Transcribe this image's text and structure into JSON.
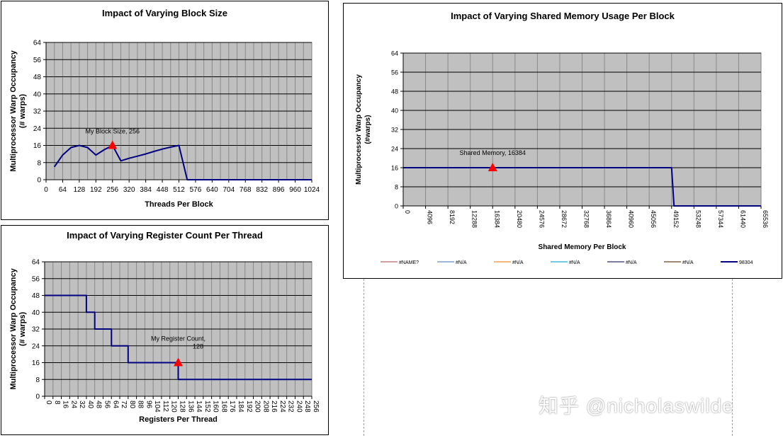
{
  "chart_data": [
    {
      "type": "line",
      "title": "Impact of Varying Block Size",
      "xlabel": "Threads Per Block",
      "ylabel_lines": [
        "Multiprocessor Warp Occupancy",
        "(# warps)"
      ],
      "xlim": [
        0,
        1024
      ],
      "ylim": [
        0,
        64
      ],
      "x_ticks": [
        0,
        64,
        128,
        192,
        256,
        320,
        384,
        448,
        512,
        576,
        640,
        704,
        768,
        832,
        896,
        960,
        1024
      ],
      "y_ticks": [
        0,
        8,
        16,
        24,
        32,
        40,
        48,
        56,
        64
      ],
      "x_grid_step": 32,
      "grid": true,
      "series": [
        {
          "color": "#000080",
          "x": [
            32,
            64,
            96,
            128,
            160,
            192,
            224,
            256,
            288,
            320,
            352,
            384,
            416,
            448,
            480,
            512,
            544,
            576,
            1024
          ],
          "y": [
            6,
            11.5,
            15,
            16,
            15,
            11.5,
            14,
            16,
            8.8,
            10,
            11,
            12,
            13.2,
            14.3,
            15.2,
            16,
            0,
            0,
            0
          ]
        }
      ],
      "annotation": {
        "x": 256,
        "y": 16,
        "lines": [
          "My Block Size, 256"
        ],
        "color": "#ff0000"
      }
    },
    {
      "type": "line",
      "title": "Impact of Varying Register Count Per Thread",
      "xlabel": "Registers Per Thread",
      "ylabel_lines": [
        "Multiprocessor Warp Occupancy",
        "(# warps)"
      ],
      "xlim": [
        0,
        256
      ],
      "ylim": [
        0,
        64
      ],
      "x_ticks": [
        0,
        8,
        16,
        24,
        32,
        40,
        48,
        56,
        64,
        72,
        80,
        88,
        96,
        104,
        112,
        120,
        128,
        136,
        144,
        152,
        160,
        168,
        176,
        184,
        192,
        200,
        208,
        216,
        224,
        232,
        240,
        248,
        256
      ],
      "x_tick_rotate": true,
      "y_ticks": [
        0,
        8,
        16,
        24,
        32,
        40,
        48,
        56,
        64
      ],
      "x_grid_step": 8,
      "grid": true,
      "series": [
        {
          "color": "#000080",
          "x": [
            0,
            40,
            40,
            48,
            48,
            64,
            64,
            80,
            80,
            128,
            128,
            256
          ],
          "y": [
            48,
            48,
            40,
            40,
            32,
            32,
            24,
            24,
            16,
            16,
            8,
            8
          ]
        }
      ],
      "annotation": {
        "x": 128,
        "y": 16,
        "lines": [
          "My Register Count,",
          "128"
        ],
        "color": "#ff0000"
      }
    },
    {
      "type": "line",
      "title": "Impact of Varying Shared Memory Usage Per Block",
      "xlabel": "Shared Memory Per Block",
      "ylabel_lines": [
        "Multiprocessor Warp Occupancy",
        "(#warps)"
      ],
      "xlim": [
        0,
        65536
      ],
      "ylim": [
        0,
        64
      ],
      "x_ticks": [
        0,
        4096,
        8192,
        12288,
        16384,
        20480,
        24576,
        28672,
        32768,
        36864,
        40960,
        45056,
        49152,
        53248,
        57344,
        61440,
        65536
      ],
      "x_tick_rotate": true,
      "y_ticks": [
        0,
        8,
        16,
        24,
        32,
        40,
        48,
        56,
        64
      ],
      "x_grid_step": 4096,
      "grid": true,
      "series": [
        {
          "color": "#000080",
          "x": [
            0,
            49152,
            49600,
            65536
          ],
          "y": [
            16,
            16,
            0,
            0
          ]
        }
      ],
      "annotation": {
        "x": 16384,
        "y": 16,
        "lines": [
          "Shared Memory, 16384"
        ],
        "color": "#ff0000"
      },
      "legend": {
        "placement": "bottom",
        "items": [
          {
            "label": "#NAME?",
            "color": "#c08080"
          },
          {
            "label": "#N/A",
            "color": "#7f9fc8"
          },
          {
            "label": "#N/A",
            "color": "#f0a050"
          },
          {
            "label": "#N/A",
            "color": "#40b8d8"
          },
          {
            "label": "#N/A",
            "color": "#505080"
          },
          {
            "label": "#N/A",
            "color": "#806040"
          },
          {
            "label": "98304",
            "color": "#000080"
          }
        ]
      }
    }
  ],
  "watermark": "知乎 @nicholaswilde"
}
